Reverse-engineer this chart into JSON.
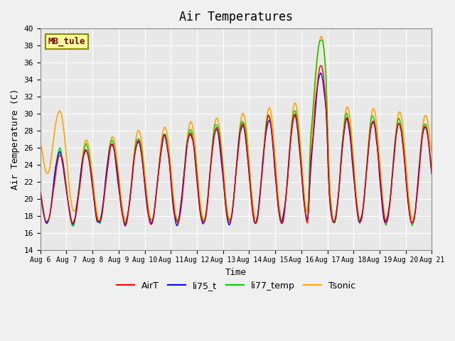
{
  "title": "Air Temperatures",
  "xlabel": "Time",
  "ylabel": "Air Temperature (C)",
  "ylim": [
    14,
    40
  ],
  "yticks": [
    14,
    16,
    18,
    20,
    22,
    24,
    26,
    28,
    30,
    32,
    34,
    36,
    38,
    40
  ],
  "xlim_days": [
    0,
    15
  ],
  "xtick_labels": [
    "Aug 6",
    "Aug 7",
    "Aug 8",
    "Aug 9",
    "Aug 10",
    "Aug 11",
    "Aug 12",
    "Aug 13",
    "Aug 14",
    "Aug 15",
    "Aug 16",
    "Aug 17",
    "Aug 18",
    "Aug 19",
    "Aug 20",
    "Aug 21"
  ],
  "annotation_text": "MB_tule",
  "annotation_color": "#8B0000",
  "annotation_bg": "#FFFFA0",
  "annotation_border": "#8B8B00",
  "colors": {
    "AirT": "#FF0000",
    "li75_t": "#0000FF",
    "li77_temp": "#00CC00",
    "Tsonic": "#FFA500"
  },
  "background_color": "#E8E8E8",
  "grid_color": "#FFFFFF",
  "font_family": "monospace"
}
